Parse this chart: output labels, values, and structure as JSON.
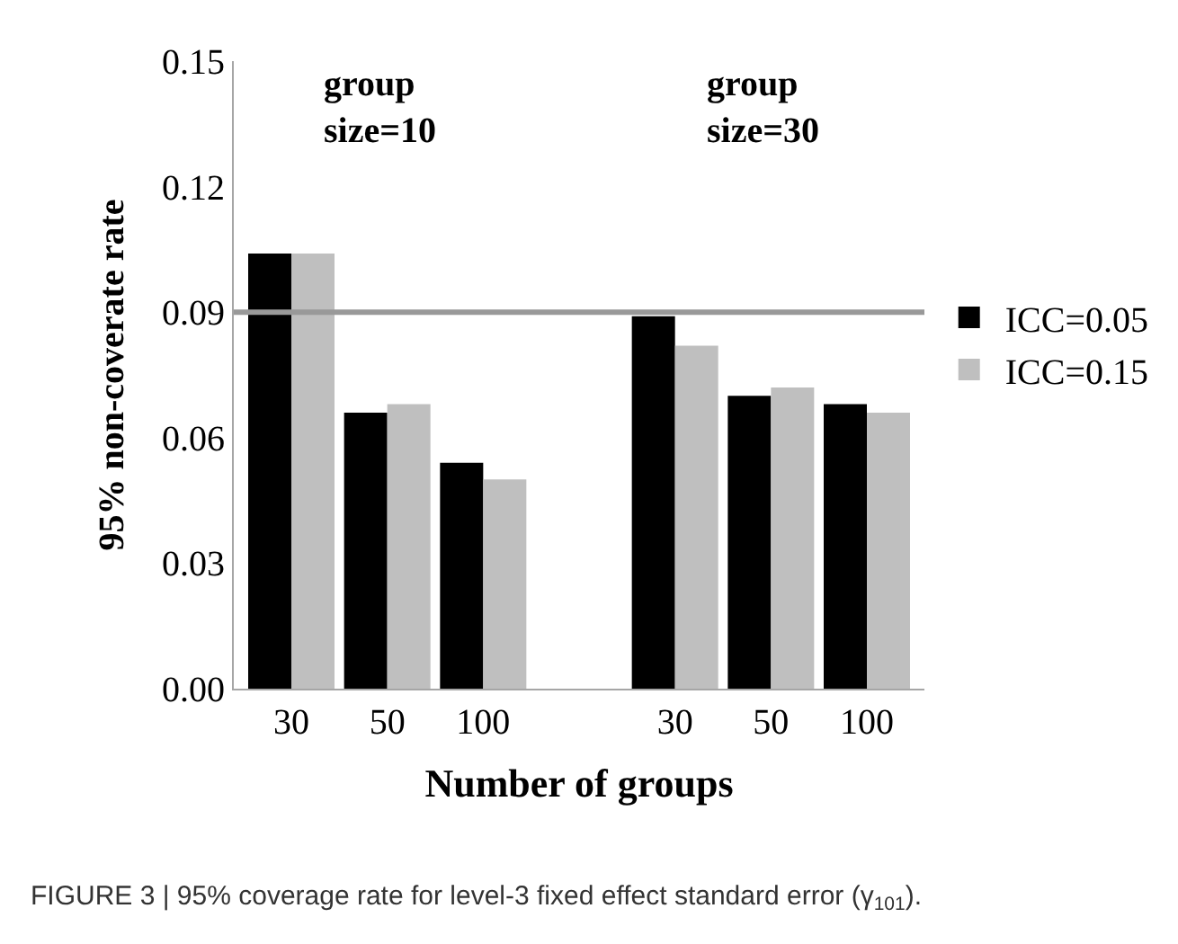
{
  "chart_data": {
    "type": "bar",
    "categories": [
      "30",
      "50",
      "100",
      null,
      "30",
      "50",
      "100"
    ],
    "series": [
      {
        "name": "ICC=0.05",
        "color": "#000000",
        "values": [
          0.104,
          0.066,
          0.054,
          null,
          0.089,
          0.07,
          0.068
        ]
      },
      {
        "name": "ICC=0.15",
        "color": "#bfbfbf",
        "values": [
          0.104,
          0.068,
          0.05,
          null,
          0.082,
          0.072,
          0.066
        ]
      }
    ],
    "ylabel": "95% non-coverate rate",
    "xlabel": "Number of groups",
    "ylim": [
      0,
      0.15
    ],
    "yticks": [
      {
        "value": 0,
        "label": "0.00"
      },
      0.03,
      0.06,
      0.09,
      0.12,
      0.15
    ],
    "ref_lines": [
      {
        "axis": "y",
        "value": 0.09,
        "color": "#999999"
      }
    ],
    "annotations": [
      "group\nsize=10",
      "group\nsize=30",
      "FIGURE 3 | 95% coverage rate for level-3 fixed effect standard error (γ$_{101}$)."
    ],
    "legend": "right"
  }
}
